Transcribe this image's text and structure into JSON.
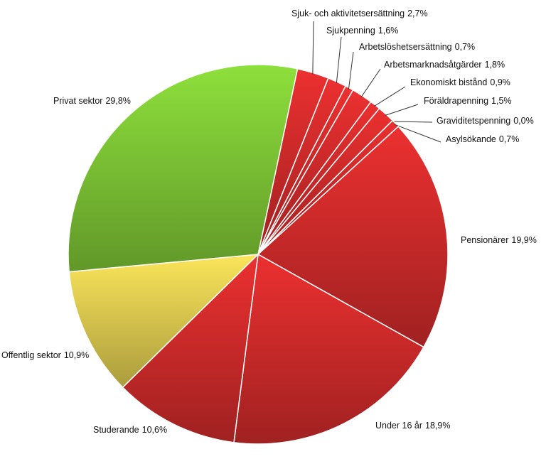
{
  "chart_data": {
    "type": "pie",
    "categories": [
      "Sjuk- och aktivitetsersättning",
      "Sjukpenning",
      "Arbetslöshetsersättning",
      "Arbetsmarknadsåtgärder",
      "Ekonomiskt bistånd",
      "Föräldrapenning",
      "Graviditetspenning",
      "Asylsökande",
      "Pensionärer",
      "Under 16 år",
      "Studerande",
      "Offentlig sektor",
      "Privat sektor"
    ],
    "values": [
      2.7,
      1.6,
      0.7,
      1.8,
      0.9,
      1.5,
      0.0,
      0.7,
      19.9,
      18.9,
      10.6,
      10.9,
      29.8
    ],
    "value_labels": [
      "2,7%",
      "1,6%",
      "0,7%",
      "1,8%",
      "0,9%",
      "1,5%",
      "0,0%",
      "0,7%",
      "19,9%",
      "18,9%",
      "10,6%",
      "10,9%",
      "29,8%"
    ],
    "colors": [
      "#ec3030",
      "#ec3030",
      "#ec3030",
      "#ec3030",
      "#ec3030",
      "#ec3030",
      "#ec3030",
      "#ec3030",
      "#ec3030",
      "#ec3030",
      "#ec3030",
      "#fbe55a",
      "#8ee03c"
    ]
  }
}
